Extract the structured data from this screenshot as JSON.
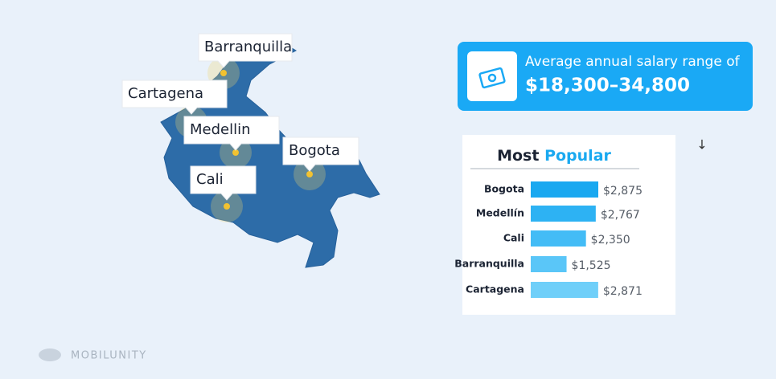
{
  "map": {
    "cities": [
      {
        "label": "Barranquilla"
      },
      {
        "label": "Cartagena"
      },
      {
        "label": "Medellin"
      },
      {
        "label": "Bogota"
      },
      {
        "label": "Cali"
      }
    ]
  },
  "salary_card": {
    "caption": "Average annual salary range of",
    "range": "$18,300–34,800"
  },
  "chart_data": {
    "type": "bar",
    "orientation": "horizontal",
    "title_parts": [
      {
        "text": "Most",
        "color": "#1b2333"
      },
      {
        "text": "Popular",
        "color": "#1aa9f0"
      }
    ],
    "categories": [
      "Bogota",
      "Medellín",
      "Cali",
      "Barranquilla",
      "Cartagena"
    ],
    "values": [
      2875,
      2767,
      2350,
      1525,
      2871
    ],
    "value_labels": [
      "$2,875",
      "$2,767",
      "$2,350",
      "$1,525",
      "$2,871"
    ],
    "colors": [
      "#19a8f0",
      "#2db2f3",
      "#43bcf6",
      "#5ac6f8",
      "#6fcff9"
    ]
  },
  "footer": {
    "brand": "MOBILUNITY"
  }
}
